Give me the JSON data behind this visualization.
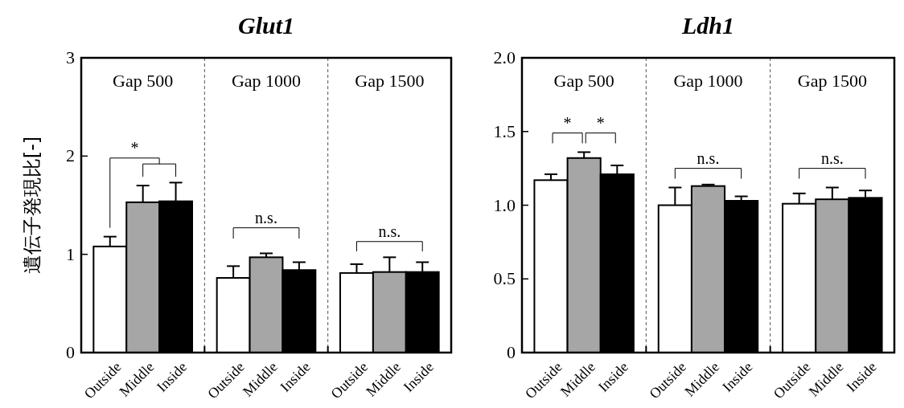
{
  "chart_data": [
    {
      "type": "bar",
      "title": "Glut1",
      "ylabel": "遺伝子発現比[-]",
      "categories": [
        "Outside",
        "Middle",
        "Inside",
        "Outside",
        "Middle",
        "Inside",
        "Outside",
        "Middle",
        "Inside"
      ],
      "values": [
        1.08,
        1.53,
        1.54,
        0.76,
        0.97,
        0.84,
        0.81,
        0.82,
        0.82
      ],
      "colors": [
        "#ffffff",
        "#a6a6a6",
        "#000000",
        "#ffffff",
        "#a6a6a6",
        "#000000",
        "#ffffff",
        "#a6a6a6",
        "#000000"
      ],
      "errors": [
        [
          1.08,
          1.18
        ],
        [
          1.53,
          1.7
        ],
        [
          1.54,
          1.73
        ],
        [
          0.76,
          0.88
        ],
        [
          0.97,
          1.01
        ],
        [
          0.84,
          0.92
        ],
        [
          0.81,
          0.9
        ],
        [
          0.82,
          0.97
        ],
        [
          0.82,
          0.92
        ]
      ],
      "ylim": [
        0,
        3
      ],
      "yticks": [
        0,
        1,
        2,
        3
      ],
      "annotations": [
        "Gap 500",
        "Gap 1000",
        "Gap 1500",
        "*",
        "n.s.",
        "n.s."
      ]
    },
    {
      "type": "bar",
      "title": "Ldh1",
      "categories": [
        "Outside",
        "Middle",
        "Inside",
        "Outside",
        "Middle",
        "Inside",
        "Outside",
        "Middle",
        "Inside"
      ],
      "values": [
        1.17,
        1.32,
        1.21,
        1.0,
        1.13,
        1.03,
        1.01,
        1.04,
        1.05
      ],
      "colors": [
        "#ffffff",
        "#a6a6a6",
        "#000000",
        "#ffffff",
        "#a6a6a6",
        "#000000",
        "#ffffff",
        "#a6a6a6",
        "#000000"
      ],
      "errors": [
        [
          1.17,
          1.21
        ],
        [
          1.32,
          1.36
        ],
        [
          1.21,
          1.27
        ],
        [
          1.0,
          1.12
        ],
        [
          1.13,
          1.14
        ],
        [
          1.03,
          1.06
        ],
        [
          1.01,
          1.08
        ],
        [
          1.04,
          1.12
        ],
        [
          1.05,
          1.1
        ]
      ],
      "ylim": [
        0,
        2
      ],
      "yticks": [
        0,
        0.5,
        {
          "value": 1,
          "label": "1.0"
        },
        1.5,
        {
          "value": 2,
          "label": "2.0"
        }
      ],
      "annotations": [
        "Gap 500",
        "Gap 1000",
        "Gap 1500",
        "*",
        "*",
        "n.s.",
        "n.s."
      ]
    }
  ]
}
